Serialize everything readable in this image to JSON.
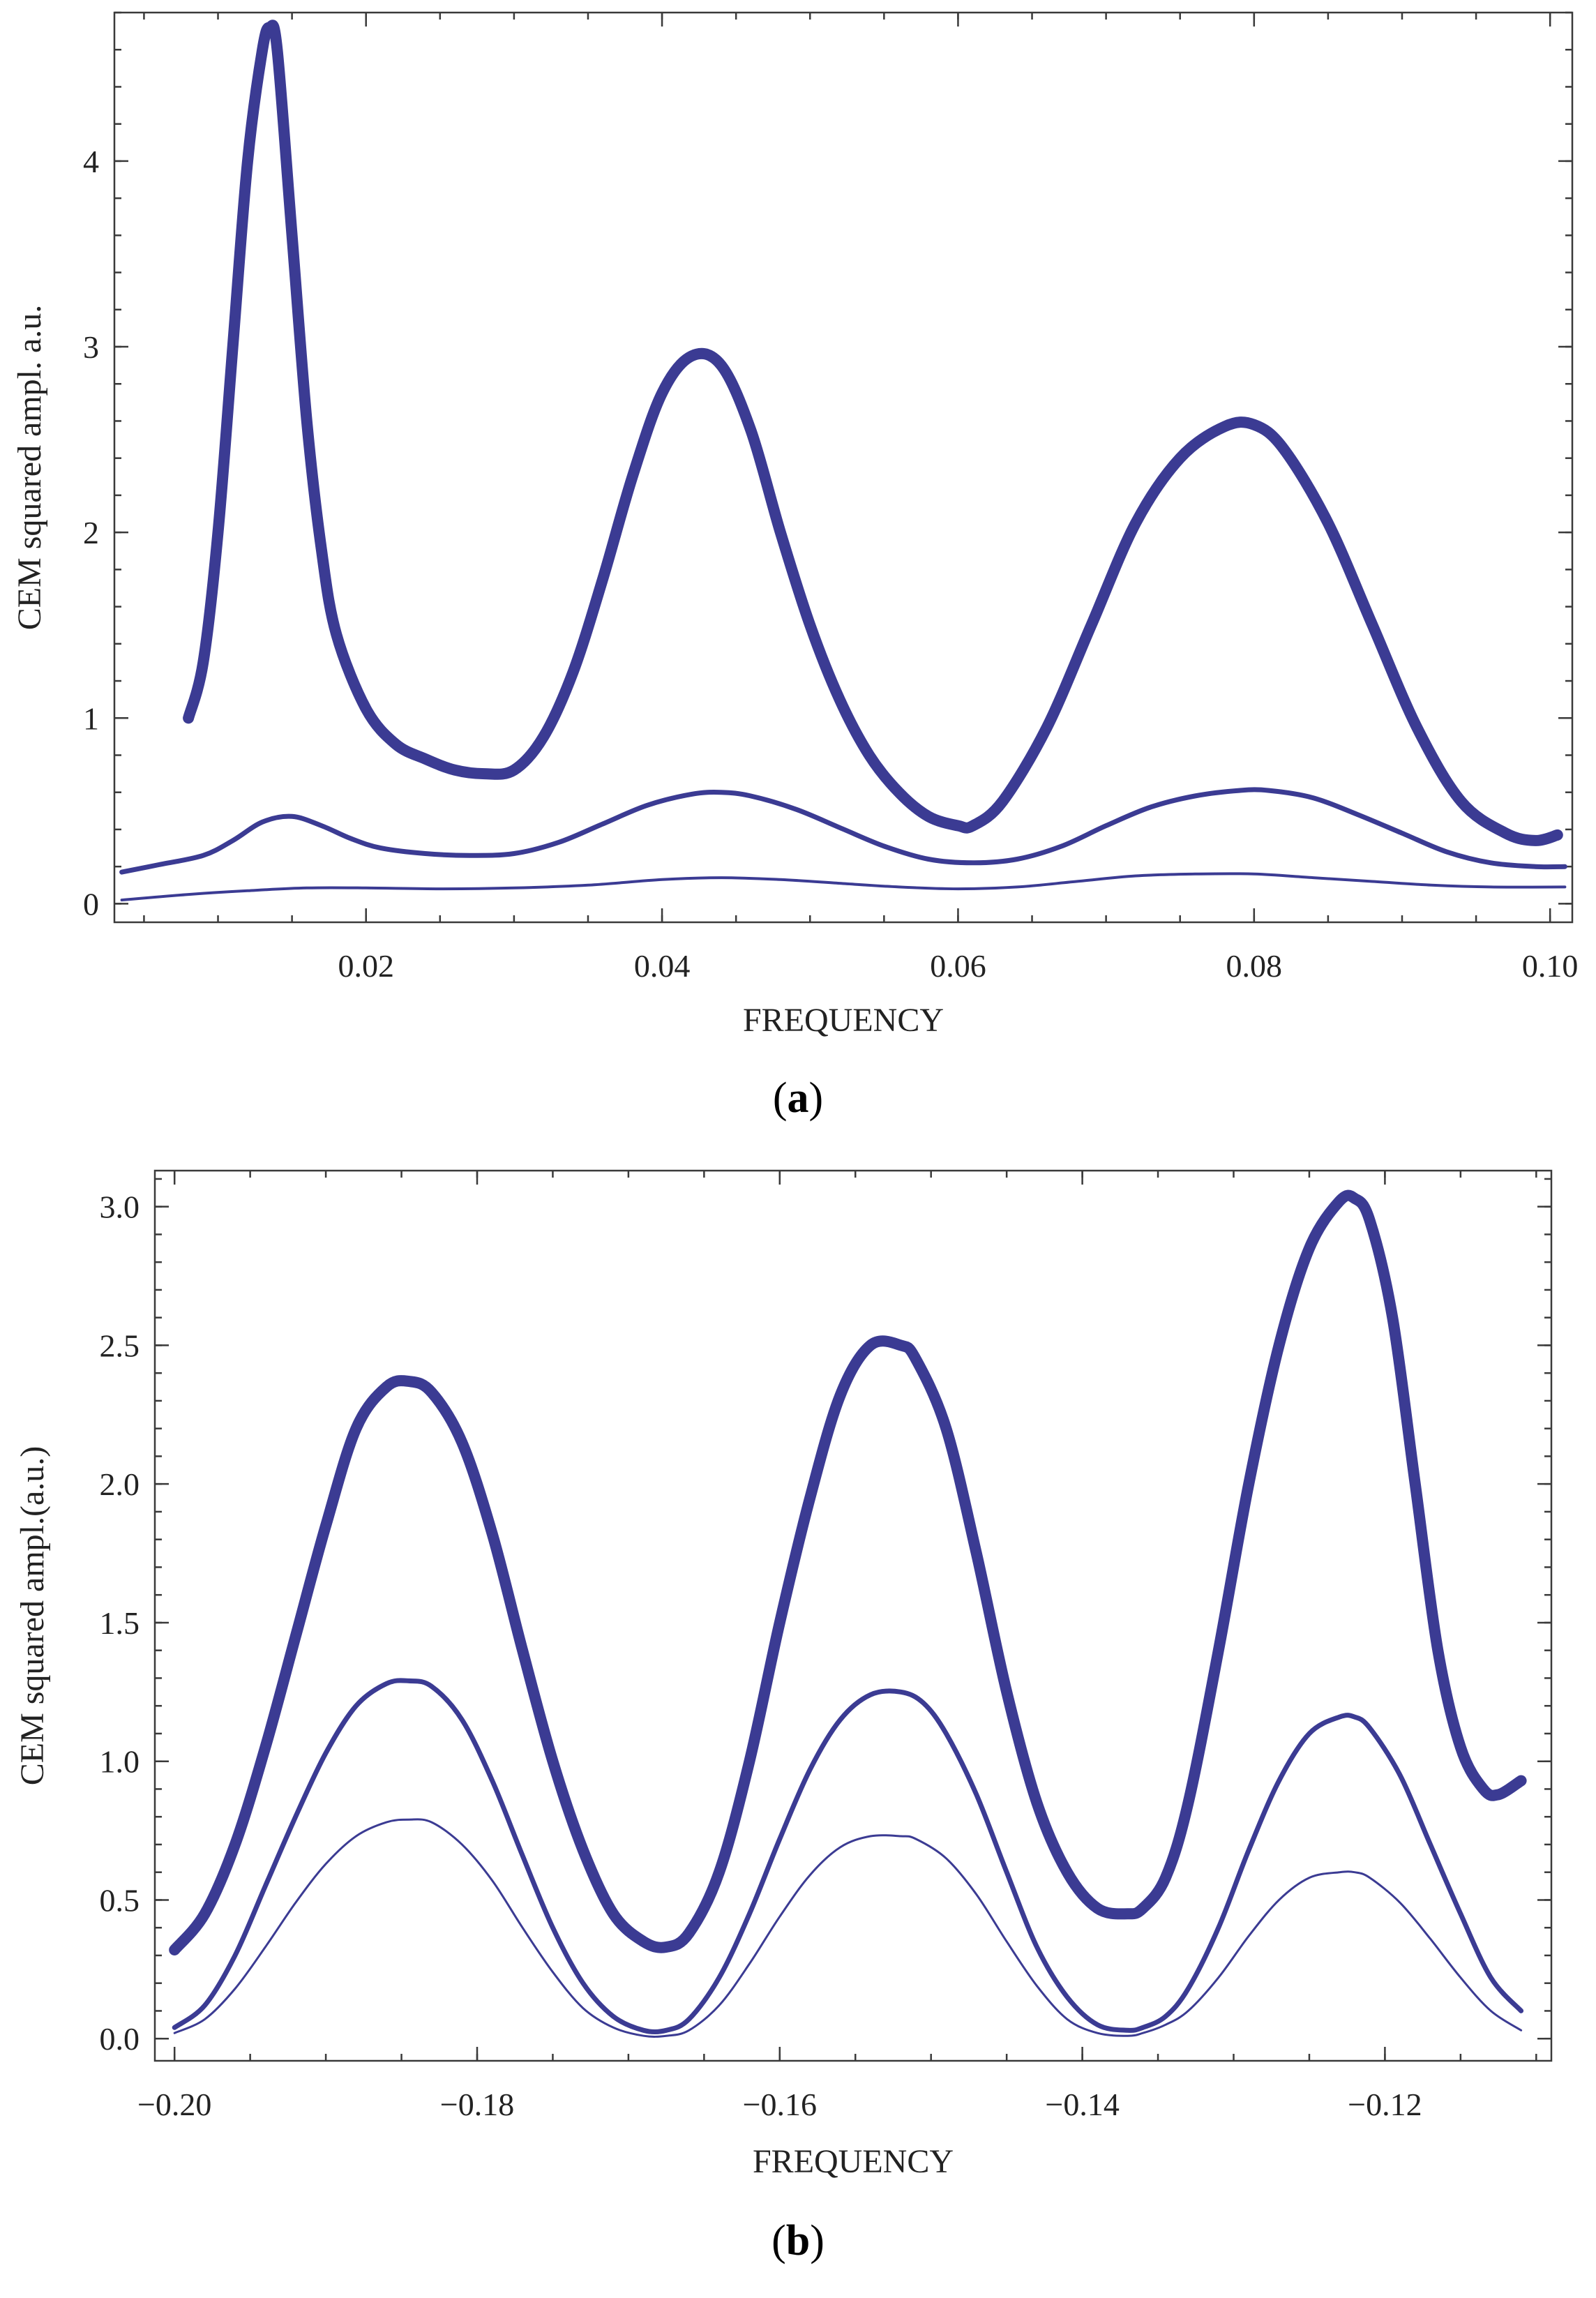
{
  "colors": {
    "series": "#3b3b93",
    "frame": "#3a3a3a",
    "background": "#ffffff"
  },
  "chart_data": [
    {
      "panel": "a",
      "type": "line",
      "caption_open": "(",
      "caption_letter": "a",
      "caption_close": ")",
      "xlabel": "FREQUENCY",
      "ylabel": "CEM squared ampl. a.u.",
      "xlim": [
        0.003,
        0.1015
      ],
      "ylim": [
        -0.1,
        4.8
      ],
      "xticks": [
        0.02,
        0.04,
        0.06,
        0.08,
        0.1
      ],
      "xtick_labels": [
        "0.02",
        "0.04",
        "0.06",
        "0.08",
        "0.10"
      ],
      "yticks": [
        0,
        1,
        2,
        3,
        4
      ],
      "ytick_labels": [
        "0",
        "1",
        "2",
        "3",
        "4"
      ],
      "series": [
        {
          "name": "thick",
          "width": 16,
          "x": [
            0.008,
            0.009,
            0.01,
            0.011,
            0.012,
            0.013,
            0.0135,
            0.014,
            0.015,
            0.016,
            0.017,
            0.018,
            0.02,
            0.022,
            0.024,
            0.026,
            0.028,
            0.03,
            0.032,
            0.034,
            0.036,
            0.038,
            0.04,
            0.042,
            0.044,
            0.046,
            0.048,
            0.05,
            0.052,
            0.054,
            0.056,
            0.058,
            0.06,
            0.061,
            0.063,
            0.066,
            0.069,
            0.072,
            0.075,
            0.078,
            0.08,
            0.082,
            0.085,
            0.088,
            0.091,
            0.094,
            0.097,
            0.099,
            0.1005
          ],
          "y": [
            1.0,
            1.3,
            2.0,
            3.0,
            4.0,
            4.6,
            4.72,
            4.6,
            3.6,
            2.6,
            1.9,
            1.45,
            1.05,
            0.86,
            0.78,
            0.72,
            0.7,
            0.72,
            0.9,
            1.25,
            1.75,
            2.3,
            2.75,
            2.95,
            2.9,
            2.55,
            2.0,
            1.5,
            1.1,
            0.8,
            0.6,
            0.47,
            0.42,
            0.42,
            0.55,
            0.95,
            1.5,
            2.05,
            2.4,
            2.57,
            2.58,
            2.45,
            2.05,
            1.5,
            0.95,
            0.55,
            0.38,
            0.34,
            0.37
          ]
        },
        {
          "name": "medium",
          "width": 7,
          "x": [
            0.0035,
            0.006,
            0.009,
            0.011,
            0.013,
            0.015,
            0.017,
            0.019,
            0.021,
            0.024,
            0.027,
            0.03,
            0.033,
            0.036,
            0.039,
            0.042,
            0.044,
            0.046,
            0.049,
            0.052,
            0.055,
            0.058,
            0.061,
            0.064,
            0.067,
            0.07,
            0.073,
            0.076,
            0.079,
            0.081,
            0.084,
            0.087,
            0.09,
            0.093,
            0.096,
            0.099,
            0.101
          ],
          "y": [
            0.17,
            0.21,
            0.26,
            0.34,
            0.44,
            0.47,
            0.42,
            0.35,
            0.3,
            0.27,
            0.26,
            0.27,
            0.33,
            0.43,
            0.53,
            0.59,
            0.6,
            0.58,
            0.51,
            0.41,
            0.31,
            0.24,
            0.22,
            0.24,
            0.31,
            0.42,
            0.52,
            0.58,
            0.61,
            0.61,
            0.57,
            0.48,
            0.38,
            0.28,
            0.22,
            0.2,
            0.2
          ]
        },
        {
          "name": "thin",
          "width": 4,
          "x": [
            0.0035,
            0.008,
            0.012,
            0.016,
            0.02,
            0.025,
            0.03,
            0.035,
            0.04,
            0.044,
            0.048,
            0.052,
            0.056,
            0.06,
            0.064,
            0.068,
            0.072,
            0.076,
            0.08,
            0.084,
            0.088,
            0.092,
            0.096,
            0.101
          ],
          "y": [
            0.02,
            0.05,
            0.07,
            0.085,
            0.085,
            0.08,
            0.085,
            0.1,
            0.13,
            0.14,
            0.13,
            0.11,
            0.09,
            0.08,
            0.09,
            0.12,
            0.15,
            0.16,
            0.16,
            0.14,
            0.12,
            0.1,
            0.09,
            0.09
          ]
        }
      ]
    },
    {
      "panel": "b",
      "type": "line",
      "caption_open": "(",
      "caption_letter": "b",
      "caption_close": ")",
      "xlabel": "FREQUENCY",
      "ylabel": "CEM squared ampl.(a.u.)",
      "xlim": [
        -0.2013,
        -0.109
      ],
      "ylim": [
        -0.08,
        3.13
      ],
      "xticks": [
        -0.2,
        -0.18,
        -0.16,
        -0.14,
        -0.12
      ],
      "xtick_labels": [
        "−0.20",
        "−0.18",
        "−0.16",
        "−0.14",
        "−0.12"
      ],
      "yticks": [
        0.0,
        0.5,
        1.0,
        1.5,
        2.0,
        2.5,
        3.0
      ],
      "ytick_labels": [
        "0.0",
        "0.5",
        "1.0",
        "1.5",
        "2.0",
        "2.5",
        "3.0"
      ],
      "series": [
        {
          "name": "thick",
          "width": 16,
          "x": [
            -0.2,
            -0.198,
            -0.196,
            -0.194,
            -0.192,
            -0.19,
            -0.188,
            -0.186,
            -0.1845,
            -0.183,
            -0.181,
            -0.179,
            -0.177,
            -0.175,
            -0.173,
            -0.171,
            -0.169,
            -0.1675,
            -0.166,
            -0.164,
            -0.162,
            -0.16,
            -0.158,
            -0.156,
            -0.154,
            -0.152,
            -0.151,
            -0.149,
            -0.147,
            -0.145,
            -0.143,
            -0.141,
            -0.139,
            -0.137,
            -0.136,
            -0.1345,
            -0.133,
            -0.131,
            -0.129,
            -0.127,
            -0.125,
            -0.123,
            -0.122,
            -0.121,
            -0.1195,
            -0.118,
            -0.1165,
            -0.115,
            -0.1135,
            -0.1125,
            -0.111
          ],
          "y": [
            0.32,
            0.45,
            0.7,
            1.05,
            1.45,
            1.85,
            2.2,
            2.35,
            2.37,
            2.33,
            2.15,
            1.82,
            1.4,
            1.0,
            0.68,
            0.45,
            0.35,
            0.33,
            0.38,
            0.6,
            1.0,
            1.5,
            1.95,
            2.32,
            2.5,
            2.5,
            2.45,
            2.2,
            1.75,
            1.25,
            0.85,
            0.6,
            0.47,
            0.45,
            0.47,
            0.58,
            0.85,
            1.4,
            2.0,
            2.5,
            2.85,
            3.02,
            3.03,
            2.95,
            2.6,
            2.0,
            1.4,
            1.05,
            0.9,
            0.88,
            0.93
          ]
        },
        {
          "name": "medium",
          "width": 7,
          "x": [
            -0.2,
            -0.198,
            -0.196,
            -0.194,
            -0.192,
            -0.19,
            -0.188,
            -0.186,
            -0.1845,
            -0.183,
            -0.181,
            -0.179,
            -0.177,
            -0.175,
            -0.173,
            -0.171,
            -0.169,
            -0.1675,
            -0.166,
            -0.164,
            -0.162,
            -0.16,
            -0.158,
            -0.156,
            -0.154,
            -0.152,
            -0.1505,
            -0.149,
            -0.147,
            -0.145,
            -0.143,
            -0.141,
            -0.139,
            -0.137,
            -0.136,
            -0.1345,
            -0.133,
            -0.131,
            -0.129,
            -0.127,
            -0.125,
            -0.123,
            -0.122,
            -0.121,
            -0.119,
            -0.117,
            -0.115,
            -0.113,
            -0.111
          ],
          "y": [
            0.04,
            0.12,
            0.3,
            0.55,
            0.8,
            1.03,
            1.2,
            1.28,
            1.29,
            1.27,
            1.15,
            0.93,
            0.66,
            0.4,
            0.2,
            0.08,
            0.03,
            0.03,
            0.07,
            0.22,
            0.45,
            0.72,
            0.97,
            1.15,
            1.24,
            1.25,
            1.21,
            1.1,
            0.88,
            0.6,
            0.33,
            0.15,
            0.05,
            0.03,
            0.04,
            0.08,
            0.18,
            0.4,
            0.68,
            0.93,
            1.1,
            1.16,
            1.16,
            1.12,
            0.95,
            0.7,
            0.45,
            0.22,
            0.1
          ]
        },
        {
          "name": "thin",
          "width": 3,
          "x": [
            -0.2,
            -0.198,
            -0.196,
            -0.194,
            -0.192,
            -0.19,
            -0.188,
            -0.186,
            -0.1845,
            -0.183,
            -0.181,
            -0.179,
            -0.177,
            -0.175,
            -0.173,
            -0.171,
            -0.169,
            -0.1675,
            -0.166,
            -0.164,
            -0.162,
            -0.16,
            -0.158,
            -0.156,
            -0.154,
            -0.152,
            -0.151,
            -0.149,
            -0.147,
            -0.145,
            -0.143,
            -0.141,
            -0.139,
            -0.137,
            -0.136,
            -0.1345,
            -0.133,
            -0.131,
            -0.129,
            -0.127,
            -0.125,
            -0.123,
            -0.122,
            -0.121,
            -0.119,
            -0.117,
            -0.115,
            -0.113,
            -0.111
          ],
          "y": [
            0.02,
            0.07,
            0.18,
            0.33,
            0.49,
            0.63,
            0.73,
            0.78,
            0.79,
            0.78,
            0.7,
            0.57,
            0.4,
            0.24,
            0.11,
            0.04,
            0.01,
            0.01,
            0.03,
            0.12,
            0.27,
            0.44,
            0.59,
            0.69,
            0.73,
            0.73,
            0.72,
            0.65,
            0.52,
            0.35,
            0.19,
            0.07,
            0.02,
            0.01,
            0.02,
            0.05,
            0.1,
            0.22,
            0.37,
            0.5,
            0.58,
            0.6,
            0.6,
            0.58,
            0.49,
            0.36,
            0.22,
            0.1,
            0.03
          ]
        }
      ]
    }
  ]
}
